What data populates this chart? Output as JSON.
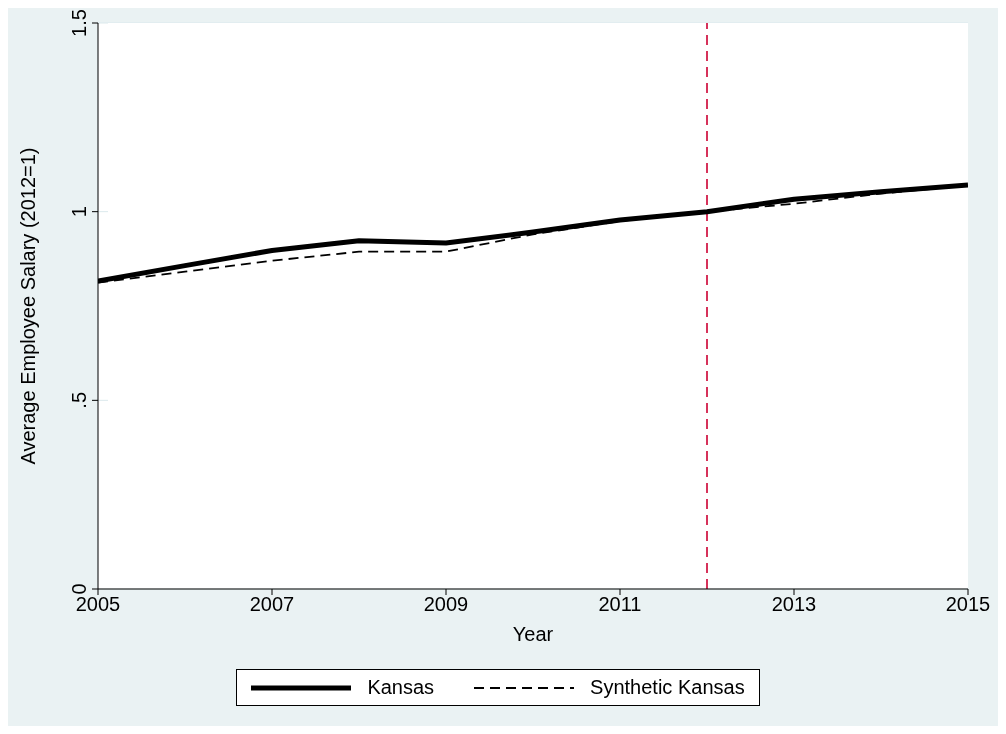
{
  "chart_data": {
    "type": "line",
    "xlabel": "Year",
    "ylabel": "Average Employee Salary (2012=1)",
    "x": [
      2005,
      2006,
      2007,
      2008,
      2009,
      2010,
      2011,
      2012,
      2013,
      2014,
      2015
    ],
    "series": [
      {
        "name": "Kansas",
        "color": "#000000",
        "line_style": "solid",
        "values": [
          0.816,
          0.857,
          0.897,
          0.923,
          0.917,
          0.946,
          0.978,
          1.0,
          1.033,
          1.053,
          1.071
        ]
      },
      {
        "name": "Synthetic Kansas",
        "color": "#000000",
        "line_style": "dashed",
        "values": [
          0.812,
          0.841,
          0.87,
          0.894,
          0.894,
          0.94,
          0.975,
          1.0,
          1.021,
          1.048,
          1.069
        ]
      }
    ],
    "xlim": [
      2005,
      2015
    ],
    "xticks": [
      2005,
      2007,
      2009,
      2011,
      2013,
      2015
    ],
    "ylim": [
      0,
      1.5
    ],
    "yticks": [
      {
        "value": 0,
        "label": "0"
      },
      {
        "value": 0.5,
        "label": ".5"
      },
      {
        "value": 1,
        "label": "1"
      },
      {
        "value": 1.5,
        "label": "1.5"
      }
    ],
    "grid": "y",
    "legend": "bottom",
    "ref_lines": [
      {
        "axis": "x",
        "value": 2012,
        "color": "#d6325a",
        "line_style": "dashed"
      }
    ]
  }
}
